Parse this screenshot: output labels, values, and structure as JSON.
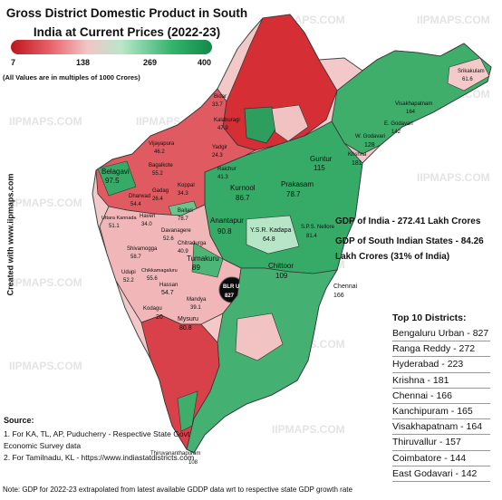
{
  "title": "Gross District Domestic Product in South India at Current Prices (2022-23)",
  "legend": {
    "ticks": [
      "7",
      "138",
      "269",
      "400"
    ],
    "units_note": "(All Values are in multiples of 1000 Crores)",
    "colors": [
      "#c0141c",
      "#e8646b",
      "#f2c6c6",
      "#b9e7c9",
      "#34b46d",
      "#128a4a"
    ]
  },
  "watermark": "IIPMAPS.COM",
  "created_with": "Created with www.iipmaps.com",
  "districts": [
    {
      "name": "Srikakulam",
      "value": "61.6"
    },
    {
      "name": "Visakhapatnam",
      "value": "164"
    },
    {
      "name": "E. Godavari",
      "value": "142"
    },
    {
      "name": "W. Godavari",
      "value": "128"
    },
    {
      "name": "Krishna",
      "value": "181"
    },
    {
      "name": "Guntur",
      "value": "115"
    },
    {
      "name": "Kurnool",
      "value": "86.7"
    },
    {
      "name": "Prakasam",
      "value": "78.7"
    },
    {
      "name": "Anantapur",
      "value": "90.8"
    },
    {
      "name": "Y.S.R. Kadapa",
      "value": "64.8"
    },
    {
      "name": "S.P.S. Nellore",
      "value": "81.4"
    },
    {
      "name": "Chittoor",
      "value": "109"
    },
    {
      "name": "Belagavi",
      "value": "97.5"
    },
    {
      "name": "Vijayapura",
      "value": "46.2"
    },
    {
      "name": "Kalaburagi",
      "value": "47.9"
    },
    {
      "name": "Bidar",
      "value": "33.7"
    },
    {
      "name": "Raichur",
      "value": "41.3"
    },
    {
      "name": "Yadgir",
      "value": "24.3"
    },
    {
      "name": "Bagalkote",
      "value": "55.2"
    },
    {
      "name": "Dharwad",
      "value": "54.4"
    },
    {
      "name": "Gadag",
      "value": "26.4"
    },
    {
      "name": "Koppal",
      "value": "34.3"
    },
    {
      "name": "Ballari",
      "value": "78.7"
    },
    {
      "name": "Uttara Kannada",
      "value": "51.1"
    },
    {
      "name": "Haveri",
      "value": "34.0"
    },
    {
      "name": "Davanagere",
      "value": "52.6"
    },
    {
      "name": "Chitradurga",
      "value": "40.9"
    },
    {
      "name": "Shivamogga",
      "value": "58.7"
    },
    {
      "name": "Udupi",
      "value": "52.2"
    },
    {
      "name": "Chikkamagaluru",
      "value": "55.6"
    },
    {
      "name": "Tumakuru",
      "value": "89"
    },
    {
      "name": "Hassan",
      "value": "54.7"
    },
    {
      "name": "Mandya",
      "value": "39.1"
    },
    {
      "name": "Kodagu",
      "value": "20"
    },
    {
      "name": "Mysuru",
      "value": "80.8"
    },
    {
      "name": "BLR U",
      "value": "827"
    },
    {
      "name": "Chennai",
      "value": "166"
    },
    {
      "name": "Thiruvananthapuram",
      "value": "108"
    }
  ],
  "info": {
    "gdp_india": "GDP of India - 272.41 Lakh Crores",
    "gdp_south": "GDP of South Indian States - 84.26 Lakh Crores (31% of India)"
  },
  "top10": {
    "title": "Top 10 Districts:",
    "items": [
      "Bengaluru Urban - 827",
      "Ranga Reddy - 272",
      "Hyderabad - 223",
      "Krishna - 181",
      "Chennai - 166",
      "Kanchipuram - 165",
      "Visakhapatnam - 164",
      "Thiruvallur - 157",
      "Coimbatore - 144",
      "East Godavari - 142"
    ]
  },
  "sources": {
    "title": "Source:",
    "line1": "1. For KA, TL, AP, Puducherry - Respective State Govt Economic Survey data",
    "line2": "2. For Tamilnadu, KL - https://www.indiastatdistricts.com"
  },
  "note": "Note: GDP for 2022-23 extrapolated from latest available GDDP data wrt to respective state GDP growth rate"
}
